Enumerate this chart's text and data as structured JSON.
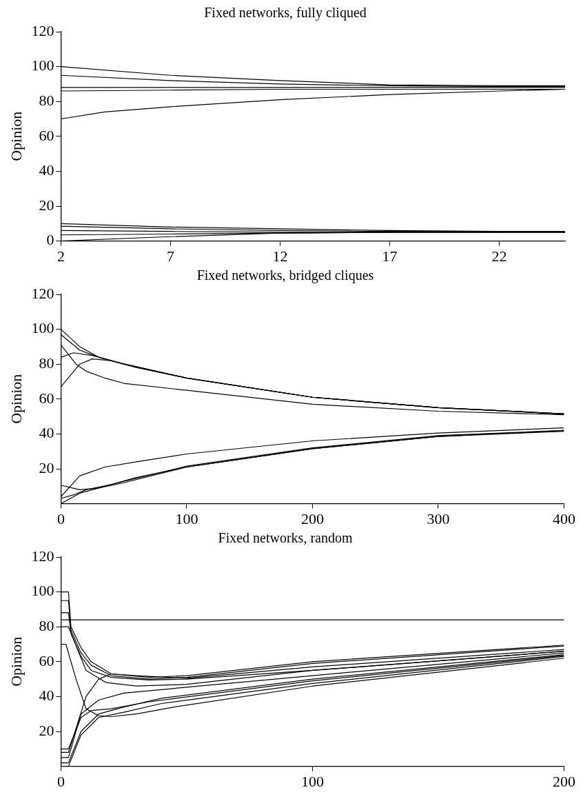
{
  "chart_data": [
    {
      "type": "line",
      "title": "Fixed networks, fully cliqued",
      "ylabel": "Opinion",
      "xlim": [
        2,
        25
      ],
      "xticks": [
        2,
        7,
        12,
        17,
        22
      ],
      "ylim": [
        0,
        120
      ],
      "yticks": [
        0,
        20,
        40,
        60,
        80,
        100,
        120
      ],
      "grid": false,
      "legend": false,
      "marker": "none",
      "line_style": "solid",
      "series": [
        {
          "color": "#000000",
          "x": [
            2,
            7,
            12,
            17,
            22,
            25
          ],
          "values": [
            100,
            95,
            92,
            89.5,
            89,
            89
          ]
        },
        {
          "color": "#000000",
          "x": [
            2,
            7,
            12,
            17,
            22,
            25
          ],
          "values": [
            95,
            92,
            90,
            89,
            88.5,
            88.5
          ]
        },
        {
          "color": "#000000",
          "x": [
            2,
            7,
            12,
            17,
            22,
            25
          ],
          "values": [
            88,
            88,
            88,
            88,
            88,
            88
          ]
        },
        {
          "color": "#000000",
          "x": [
            2,
            7,
            12,
            17,
            22,
            25
          ],
          "values": [
            86,
            86.5,
            87,
            87,
            87,
            87
          ]
        },
        {
          "color": "#000000",
          "x": [
            2,
            4,
            7,
            12,
            17,
            22,
            25
          ],
          "values": [
            70,
            74,
            77,
            81,
            84,
            86,
            87
          ]
        },
        {
          "color": "#000000",
          "x": [
            2,
            7,
            12,
            17,
            22,
            25
          ],
          "values": [
            10,
            8,
            7,
            6,
            5.5,
            5.5
          ]
        },
        {
          "color": "#000000",
          "x": [
            2,
            7,
            12,
            17,
            22,
            25
          ],
          "values": [
            8.5,
            7,
            6,
            5.5,
            5.5,
            5.5
          ]
        },
        {
          "color": "#000000",
          "x": [
            2,
            7,
            12,
            17,
            22,
            25
          ],
          "values": [
            6,
            5.5,
            5,
            5,
            5,
            5
          ]
        },
        {
          "color": "#000000",
          "x": [
            2,
            7,
            12,
            17,
            22,
            25
          ],
          "values": [
            3.5,
            4,
            4.5,
            5,
            5,
            5
          ]
        },
        {
          "color": "#000000",
          "x": [
            2,
            7,
            12,
            17,
            22,
            25
          ],
          "values": [
            0,
            2.5,
            4.5,
            5,
            5,
            5
          ]
        }
      ]
    },
    {
      "type": "line",
      "title": "Fixed networks, bridged cliques",
      "ylabel": "Opinion",
      "xlim": [
        0,
        400
      ],
      "xticks": [
        0,
        100,
        200,
        300,
        400
      ],
      "ylim": [
        0,
        120
      ],
      "yticks": [
        20,
        40,
        60,
        80,
        100,
        120
      ],
      "grid": false,
      "legend": false,
      "marker": "none",
      "line_style": "solid",
      "series": [
        {
          "color": "#000000",
          "x": [
            0,
            15,
            30,
            50,
            100,
            200,
            300,
            400
          ],
          "values": [
            100,
            90,
            84,
            80,
            72,
            61,
            55,
            51.5
          ]
        },
        {
          "color": "#000000",
          "x": [
            0,
            15,
            30,
            50,
            100,
            200,
            300,
            400
          ],
          "values": [
            97,
            88,
            84,
            80,
            72,
            61,
            55,
            51.5
          ]
        },
        {
          "color": "#000000",
          "x": [
            0,
            10,
            25,
            45,
            100,
            200,
            300,
            400
          ],
          "values": [
            84,
            86.5,
            85,
            81,
            72,
            61,
            55,
            51.5
          ]
        },
        {
          "color": "#000000",
          "x": [
            0,
            15,
            25,
            40,
            60,
            100,
            200,
            300,
            400
          ],
          "values": [
            67,
            80,
            83,
            82,
            78,
            72,
            61,
            55,
            51.5
          ]
        },
        {
          "color": "#000000",
          "x": [
            0,
            12,
            20,
            35,
            50,
            100,
            200,
            300,
            400
          ],
          "values": [
            91,
            80,
            76,
            72,
            69,
            65,
            57,
            53,
            51
          ]
        },
        {
          "color": "#000000",
          "x": [
            0,
            15,
            35,
            60,
            100,
            200,
            300,
            400
          ],
          "values": [
            4,
            16,
            21,
            24,
            28.5,
            36,
            40.5,
            43.5
          ]
        },
        {
          "color": "#000000",
          "x": [
            0,
            15,
            30,
            50,
            100,
            200,
            300,
            400
          ],
          "values": [
            10.5,
            8,
            9,
            12,
            21,
            31.5,
            38.5,
            42
          ]
        },
        {
          "color": "#000000",
          "x": [
            0,
            15,
            35,
            60,
            100,
            200,
            300,
            400
          ],
          "values": [
            0,
            6,
            10,
            15,
            21,
            31.5,
            38.5,
            41.5
          ]
        },
        {
          "color": "#000000",
          "x": [
            0,
            10,
            20,
            40,
            100,
            200,
            300,
            400
          ],
          "values": [
            3,
            5,
            8,
            11,
            21.5,
            32,
            39,
            42
          ]
        }
      ]
    },
    {
      "type": "line",
      "title": "Fixed networks, random",
      "ylabel": "Opinion",
      "xlim": [
        0,
        200
      ],
      "xticks": [
        0,
        100,
        200
      ],
      "ylim": [
        0,
        120
      ],
      "yticks": [
        20,
        40,
        60,
        80,
        100,
        120
      ],
      "grid": false,
      "legend": false,
      "marker": "none",
      "line_style": "solid",
      "series": [
        {
          "color": "#000000",
          "x": [
            0,
            200
          ],
          "values": [
            84,
            84
          ]
        },
        {
          "color": "#000000",
          "x": [
            0,
            3,
            4,
            8,
            12,
            20,
            35,
            50,
            100,
            200
          ],
          "values": [
            100,
            100,
            80,
            68,
            60,
            53,
            51,
            52,
            60,
            69.5
          ]
        },
        {
          "color": "#000000",
          "x": [
            0,
            3,
            4,
            8,
            12,
            20,
            35,
            50,
            100,
            200
          ],
          "values": [
            95,
            95,
            78,
            65,
            58,
            52,
            50,
            51,
            59,
            69
          ]
        },
        {
          "color": "#000000",
          "x": [
            0,
            3,
            4,
            8,
            12,
            20,
            35,
            50,
            100,
            200
          ],
          "values": [
            88,
            88,
            76,
            63,
            55,
            51,
            49.5,
            50,
            55,
            66
          ]
        },
        {
          "color": "#000000",
          "x": [
            0,
            2,
            6,
            10,
            15,
            20,
            30,
            45,
            100,
            200
          ],
          "values": [
            70,
            70,
            50,
            33,
            29,
            28.5,
            30,
            34,
            46,
            62
          ]
        },
        {
          "color": "#000000",
          "x": [
            0,
            3,
            10,
            18,
            30,
            50,
            100,
            200
          ],
          "values": [
            80,
            80,
            55,
            48,
            46,
            47,
            55,
            66
          ]
        },
        {
          "color": "#000000",
          "x": [
            0,
            3,
            10,
            15,
            20,
            30,
            50,
            100,
            200
          ],
          "values": [
            8,
            8,
            40,
            50,
            53,
            52,
            50.5,
            57,
            67
          ]
        },
        {
          "color": "#000000",
          "x": [
            0,
            3,
            8,
            15,
            25,
            40,
            100,
            200
          ],
          "values": [
            5,
            5,
            30,
            38,
            42,
            44,
            52,
            65
          ]
        },
        {
          "color": "#000000",
          "x": [
            0,
            3,
            8,
            12,
            20,
            35,
            100,
            200
          ],
          "values": [
            10,
            10,
            28,
            32,
            33,
            37,
            49,
            63.5
          ]
        },
        {
          "color": "#000000",
          "x": [
            0,
            3,
            8,
            15,
            25,
            40,
            100,
            200
          ],
          "values": [
            2,
            2,
            20,
            30,
            34,
            39,
            50,
            64
          ]
        },
        {
          "color": "#000000",
          "x": [
            0,
            3,
            8,
            15,
            25,
            40,
            100,
            200
          ],
          "values": [
            0,
            0,
            18,
            28,
            31,
            36,
            47.5,
            63
          ]
        }
      ]
    }
  ]
}
